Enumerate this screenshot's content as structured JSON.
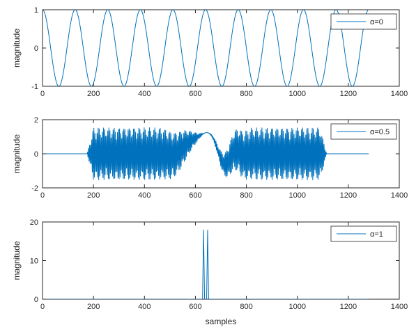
{
  "chart_data": [
    {
      "type": "line",
      "series": [
        {
          "name": "α=0",
          "function": "cos(2π·x/128)",
          "x_range": [
            0,
            1280
          ]
        }
      ],
      "xlabel": "",
      "ylabel": "magnitude",
      "xlim": [
        0,
        1400
      ],
      "ylim": [
        -1,
        1
      ],
      "xticks": [
        "0",
        "200",
        "400",
        "600",
        "800",
        "1000",
        "1200",
        "1400"
      ],
      "yticks": [
        "-1",
        "0",
        "1"
      ],
      "legend": {
        "label": "α=0",
        "placement": "top-right"
      },
      "grid": false
    },
    {
      "type": "line",
      "series": [
        {
          "name": "α=0.5",
          "description": "chirp-like oscillation confined to ~180–1110, amplitude ≈1.6, lower frequency near center ~600–700",
          "x_range": [
            0,
            1280
          ]
        }
      ],
      "xlabel": "",
      "ylabel": "magnitude",
      "xlim": [
        0,
        1400
      ],
      "ylim": [
        -2,
        2
      ],
      "xticks": [
        "0",
        "200",
        "400",
        "600",
        "800",
        "1000",
        "1200",
        "1400"
      ],
      "yticks": [
        "-2",
        "0",
        "2"
      ],
      "legend": {
        "label": "α=0.5",
        "placement": "top-right"
      },
      "grid": false
    },
    {
      "type": "line",
      "series": [
        {
          "name": "α=1",
          "x": [
            0,
            628,
            632,
            636,
            640,
            644,
            648,
            652,
            1280
          ],
          "y": [
            0,
            0,
            18,
            0,
            0,
            0,
            18,
            0,
            0
          ]
        }
      ],
      "xlabel": "samples",
      "ylabel": "magnitude",
      "xlim": [
        0,
        1400
      ],
      "ylim": [
        0,
        20
      ],
      "xticks": [
        "0",
        "200",
        "400",
        "600",
        "800",
        "1000",
        "1200",
        "1400"
      ],
      "yticks": [
        "0",
        "10",
        "20"
      ],
      "legend": {
        "label": "α=1",
        "placement": "top-right"
      },
      "grid": false
    }
  ],
  "colors": {
    "line": "#0072BD",
    "axis": "#262626",
    "background": "#ffffff"
  }
}
